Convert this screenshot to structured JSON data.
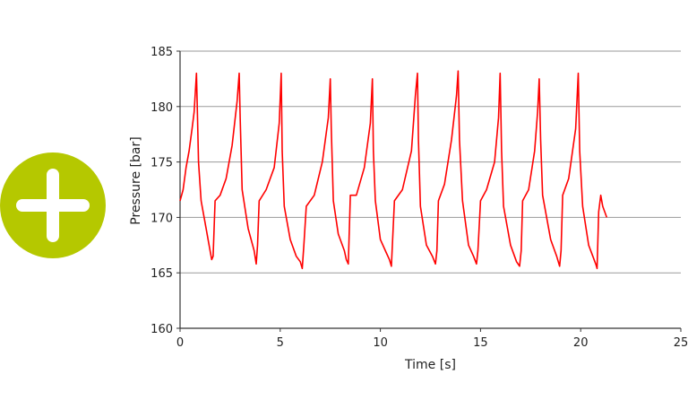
{
  "badge": {
    "icon": "plus-icon",
    "color": "#b5c800"
  },
  "chart_data": {
    "type": "line",
    "xlabel": "Time [s]",
    "ylabel": "Pressure [bar]",
    "xlim": [
      0,
      25
    ],
    "ylim": [
      160,
      185
    ],
    "xticks": [
      0,
      5,
      10,
      15,
      20,
      25
    ],
    "yticks": [
      160,
      165,
      170,
      175,
      180,
      185
    ],
    "grid": "horizontal",
    "line_color": "#ff0000",
    "series": [
      {
        "x": [
          0.0,
          0.15,
          0.3,
          0.45,
          0.6,
          0.7,
          0.82,
          0.86,
          0.92,
          1.05,
          1.3,
          1.5,
          1.58,
          1.65,
          1.75,
          2.0,
          2.3,
          2.6,
          2.85,
          2.95,
          3.0,
          3.1,
          3.4,
          3.7,
          3.8,
          3.87,
          3.95,
          4.3,
          4.7,
          4.95,
          5.05,
          5.1,
          5.2,
          5.5,
          5.8,
          6.0,
          6.1,
          6.18,
          6.3,
          6.7,
          7.1,
          7.4,
          7.5,
          7.55,
          7.65,
          7.9,
          8.2,
          8.3,
          8.4,
          8.5,
          8.8,
          9.2,
          9.5,
          9.6,
          9.65,
          9.75,
          10.0,
          10.3,
          10.45,
          10.55,
          10.7,
          11.1,
          11.55,
          11.75,
          11.85,
          11.9,
          12.0,
          12.3,
          12.6,
          12.75,
          12.82,
          12.9,
          13.2,
          13.55,
          13.8,
          13.88,
          13.95,
          14.1,
          14.4,
          14.65,
          14.8,
          14.87,
          15.0,
          15.3,
          15.7,
          15.9,
          15.98,
          16.05,
          16.15,
          16.5,
          16.8,
          16.95,
          17.03,
          17.1,
          17.4,
          17.7,
          17.85,
          17.93,
          18.0,
          18.1,
          18.5,
          18.8,
          18.95,
          19.02,
          19.1,
          19.4,
          19.75,
          19.88,
          19.95,
          20.1,
          20.4,
          20.75,
          20.82,
          20.9,
          21.0,
          21.1,
          21.3
        ],
        "y": [
          171.5,
          172.5,
          174.5,
          176.0,
          178.0,
          179.5,
          183.0,
          180.0,
          175.0,
          171.5,
          169.0,
          167.0,
          166.2,
          166.5,
          171.5,
          172.0,
          173.5,
          176.5,
          180.5,
          183.0,
          179.0,
          172.5,
          169.0,
          167.0,
          165.8,
          167.5,
          171.5,
          172.5,
          174.5,
          178.5,
          183.0,
          176.0,
          171.0,
          168.0,
          166.5,
          166.0,
          165.4,
          167.5,
          171.0,
          172.0,
          175.0,
          179.0,
          182.5,
          178.0,
          171.5,
          168.5,
          167.0,
          166.2,
          165.8,
          172.0,
          172.0,
          174.5,
          178.5,
          182.5,
          176.0,
          171.5,
          168.0,
          166.8,
          166.2,
          165.6,
          171.5,
          172.5,
          176.0,
          181.0,
          183.0,
          177.0,
          171.0,
          167.5,
          166.5,
          165.8,
          167.0,
          171.5,
          173.0,
          177.0,
          181.0,
          183.2,
          177.0,
          171.5,
          167.5,
          166.5,
          165.8,
          167.0,
          171.5,
          172.5,
          175.0,
          179.0,
          183.0,
          176.0,
          171.0,
          167.5,
          166.0,
          165.6,
          167.0,
          171.5,
          172.5,
          176.0,
          179.5,
          182.5,
          177.0,
          172.0,
          168.0,
          166.5,
          165.6,
          167.0,
          172.0,
          173.5,
          178.0,
          183.0,
          176.0,
          171.0,
          167.5,
          165.8,
          165.4,
          170.5,
          172.0,
          171.0,
          170.0
        ]
      }
    ]
  }
}
